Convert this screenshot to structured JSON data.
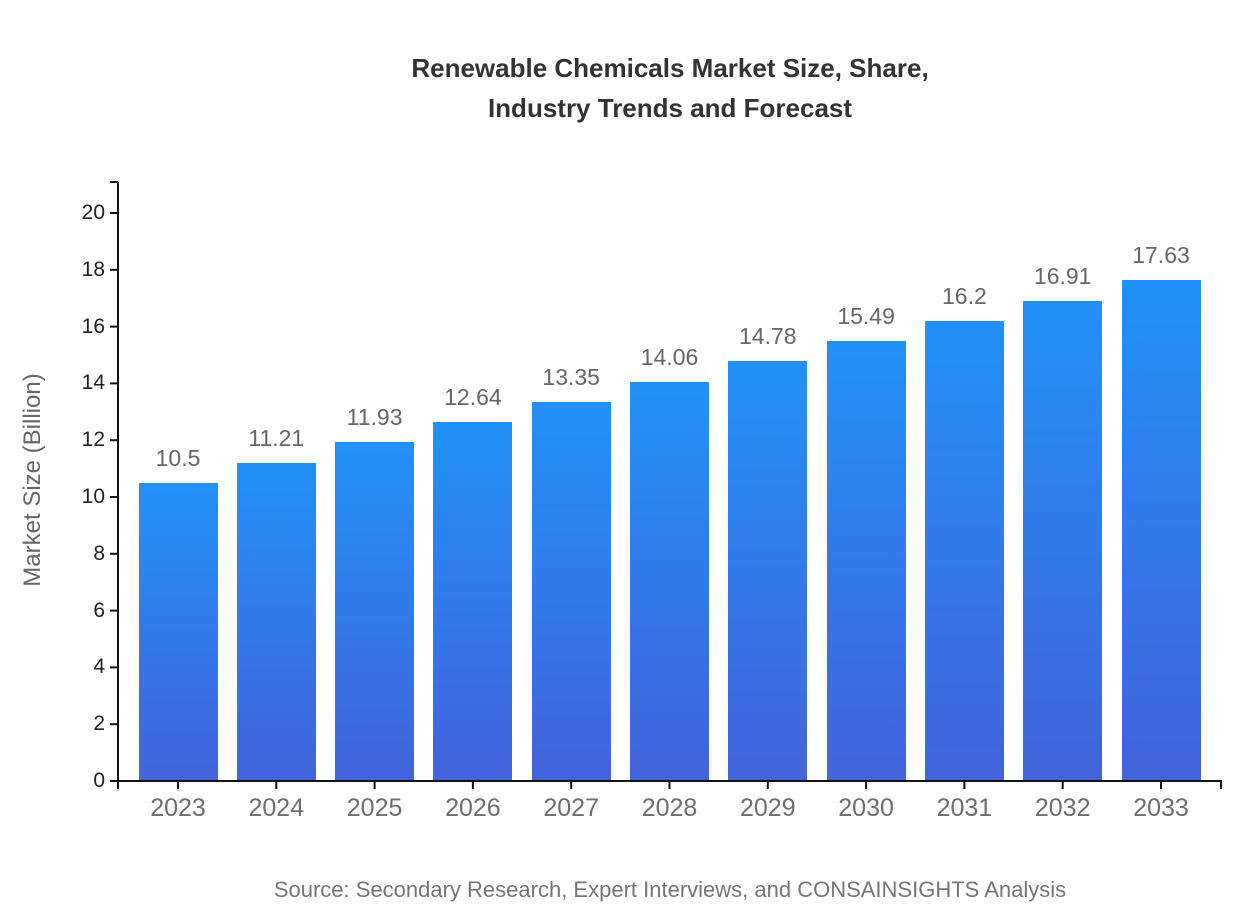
{
  "title": {
    "full": "Renewable Chemicals Market Size, Share, Industry Trends and Forecast",
    "lines": [
      "Renewable Chemicals Market Size, Share,",
      "Industry Trends and Forecast"
    ]
  },
  "chart_data": {
    "type": "bar",
    "title": "Renewable Chemicals Market Size, Share, Industry Trends and Forecast",
    "categories": [
      "2023",
      "2024",
      "2025",
      "2026",
      "2027",
      "2028",
      "2029",
      "2030",
      "2031",
      "2032",
      "2033"
    ],
    "values": [
      10.5,
      11.21,
      11.93,
      12.64,
      13.35,
      14.06,
      14.78,
      15.49,
      16.2,
      16.91,
      17.63
    ],
    "value_labels": [
      "10.5",
      "11.21",
      "11.93",
      "12.64",
      "13.35",
      "14.06",
      "14.78",
      "15.49",
      "16.2",
      "16.91",
      "17.63"
    ],
    "xlabel": "",
    "ylabel": "Market Size (Billion)",
    "ylim": [
      0,
      20
    ],
    "yticks": [
      0,
      2,
      4,
      6,
      8,
      10,
      12,
      14,
      16,
      18,
      20
    ],
    "grid": false,
    "legend": "none",
    "colors": {
      "bar_gradient_top": "#2191f8",
      "bar_gradient_bottom": "#4363db",
      "axis_line": "#111111",
      "y_tick_label": "#222222",
      "x_tick_label": "#6e6e6e",
      "value_label": "#666666",
      "title": "#333333",
      "ylabel": "#666666",
      "source": "#757575"
    }
  },
  "source": {
    "text": "Source: Secondary Research, Expert Interviews, and CONSAINSIGHTS Analysis"
  }
}
